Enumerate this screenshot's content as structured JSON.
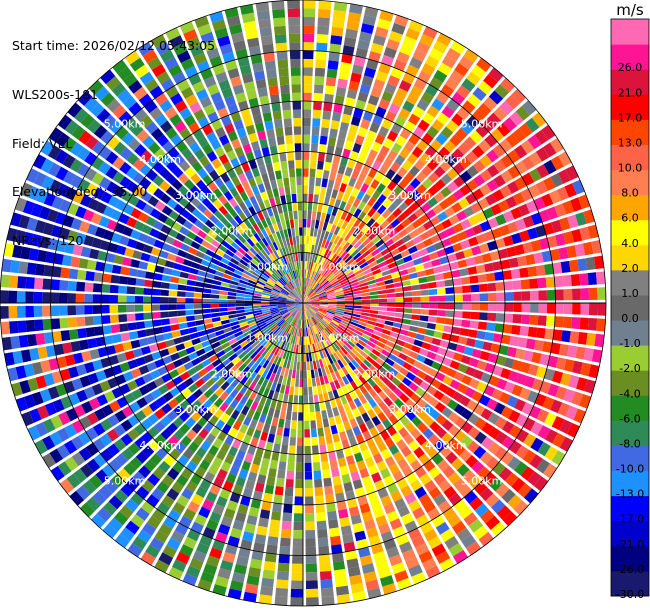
{
  "info": {
    "start_time": "Start time: 2026/02/12 05:43:05",
    "site": "WLS200s-181",
    "field": "Field: VEL",
    "elevation": "Elevation(deg): 35.00",
    "nrays": "NRays: 120"
  },
  "chart_data": {
    "type": "heatmap",
    "projection": "polar-ppi",
    "field": "VEL",
    "n_rays": 120,
    "range_gates": 36,
    "max_range_km": 6.0,
    "range_rings_km": [
      1.0,
      2.0,
      3.0,
      4.0,
      5.0
    ],
    "ring_labels": [
      "1.00km",
      "2.00km",
      "3.00km",
      "4.00km",
      "5.00km"
    ],
    "colorbar": {
      "unit": "m/s",
      "boundaries": [
        -30.0,
        -26.0,
        -21.0,
        -17.0,
        -13.0,
        -10.0,
        -8.0,
        -6.0,
        -4.0,
        -2.0,
        -1.0,
        0.0,
        1.0,
        2.0,
        4.0,
        6.0,
        8.0,
        10.0,
        13.0,
        17.0,
        21.0,
        26.0
      ],
      "tick_labels": [
        "-30.0",
        "-26.0",
        "-21.0",
        "-17.0",
        "-13.0",
        "-10.0",
        "-8.0",
        "-6.0",
        "-4.0",
        "-2.0",
        "-1.0",
        "0.0",
        "1.0",
        "2.0",
        "4.0",
        "6.0",
        "8.0",
        "10.0",
        "13.0",
        "17.0",
        "21.0",
        "26.0"
      ],
      "colors": [
        "#191970",
        "#000080",
        "#0000cd",
        "#0000ff",
        "#1e90ff",
        "#4169e1",
        "#2e8b57",
        "#228b22",
        "#6b8e23",
        "#9acd32",
        "#708090",
        "#696969",
        "#808080",
        "#ffd700",
        "#ffff00",
        "#ffa500",
        "#ff7f50",
        "#ff6347",
        "#ff4500",
        "#ff0000",
        "#dc143c",
        "#ff1493",
        "#ff69b4"
      ]
    }
  }
}
